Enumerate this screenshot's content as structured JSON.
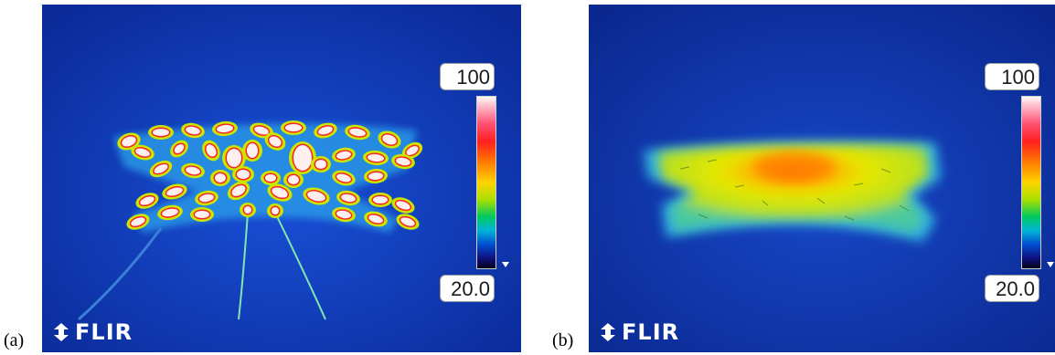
{
  "panels": [
    {
      "label": "(a)",
      "scale_max": "100",
      "scale_min": "20.0",
      "logo_text": "FLIR"
    },
    {
      "label": "(b)",
      "scale_max": "100",
      "scale_min": "20.0",
      "logo_text": "FLIR"
    }
  ],
  "colors": {
    "background_blue": "#0a2fa8",
    "hot_red": "#ff2020",
    "warm_yellow": "#d8e800"
  }
}
